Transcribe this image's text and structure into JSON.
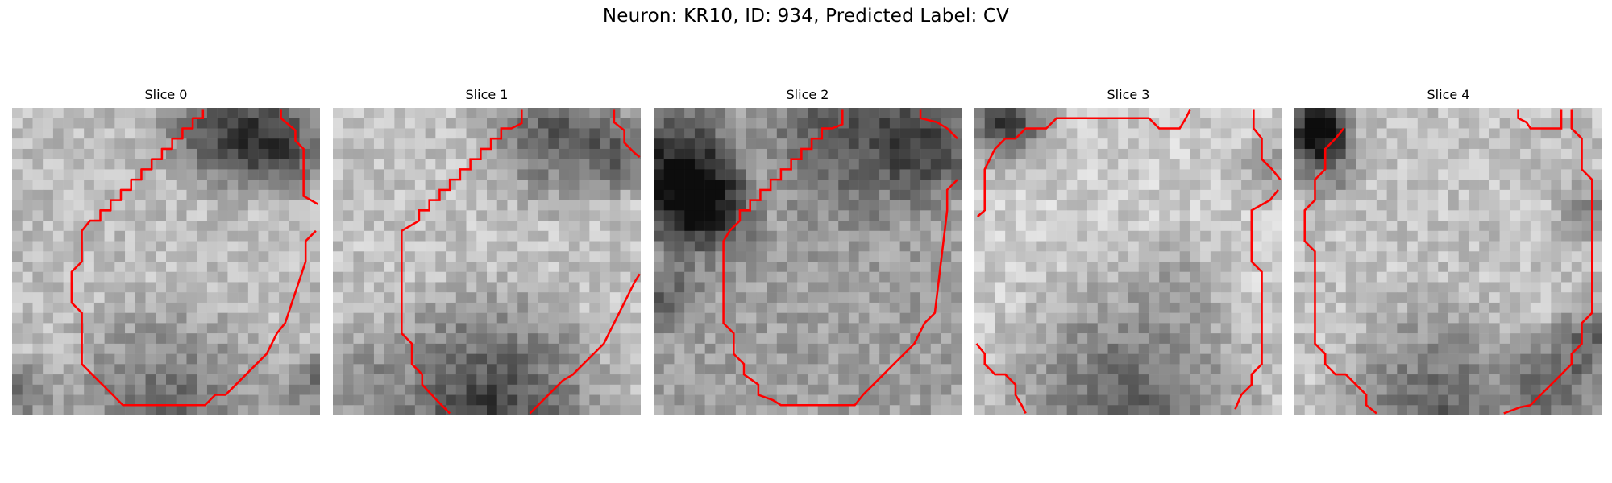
{
  "figure": {
    "title": "Neuron: KR10, ID: 934, Predicted Label: CV"
  },
  "panels": [
    {
      "title": "Slice 0"
    },
    {
      "title": "Slice 1"
    },
    {
      "title": "Slice 2"
    },
    {
      "title": "Slice 3"
    },
    {
      "title": "Slice 4"
    }
  ],
  "colors": {
    "contour": "#ff0000",
    "colormap": "grayscale"
  }
}
